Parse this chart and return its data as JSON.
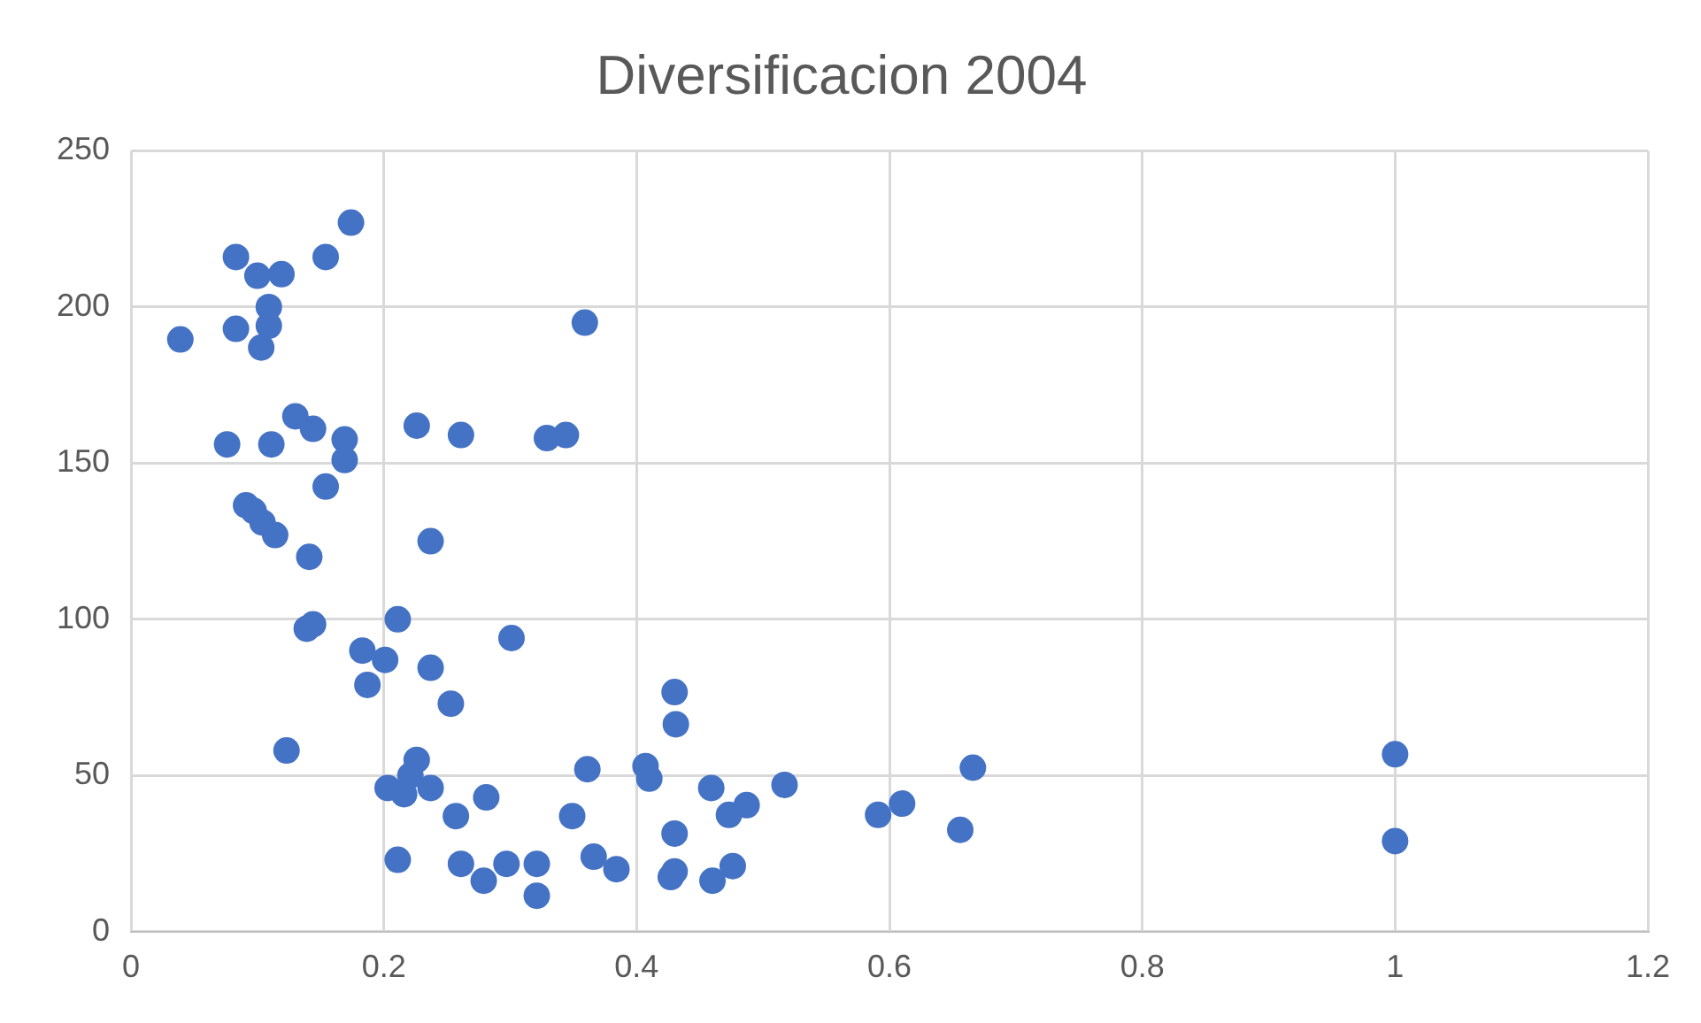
{
  "chart_data": {
    "type": "scatter",
    "title": "Diversificacion 2004",
    "x": [
      0.039,
      0.083,
      0.1,
      0.119,
      0.174,
      0.154,
      0.109,
      0.083,
      0.109,
      0.103,
      0.359,
      0.076,
      0.111,
      0.13,
      0.144,
      0.169,
      0.169,
      0.226,
      0.261,
      0.329,
      0.344,
      0.091,
      0.097,
      0.104,
      0.114,
      0.154,
      0.141,
      0.237,
      0.139,
      0.144,
      0.211,
      0.183,
      0.201,
      0.187,
      0.237,
      0.301,
      0.253,
      0.123,
      0.43,
      0.431,
      0.226,
      0.221,
      0.203,
      0.216,
      0.237,
      0.257,
      0.281,
      0.361,
      0.407,
      0.41,
      0.349,
      0.459,
      0.473,
      0.487,
      0.517,
      0.591,
      0.61,
      0.656,
      0.666,
      1,
      1,
      0.211,
      0.261,
      0.279,
      0.297,
      0.321,
      0.321,
      0.366,
      0.384,
      0.43,
      0.427,
      0.43,
      0.476,
      0.46
    ],
    "series": [
      {
        "color": "#4472c4",
        "values": [
          189.6,
          216,
          210,
          210.5,
          227,
          216,
          200,
          193,
          194,
          187,
          195,
          156,
          156,
          165,
          161,
          157.6,
          151,
          162,
          159,
          158,
          159,
          136.5,
          134.7,
          131,
          127,
          142.5,
          120,
          125,
          97,
          98.4,
          100,
          90,
          87,
          79,
          84.5,
          94,
          73,
          58,
          76.7,
          66.4,
          55,
          50,
          46,
          44,
          46,
          37,
          43,
          52,
          53,
          49,
          37,
          46,
          37.4,
          40.5,
          47,
          37.4,
          41,
          32.6,
          52.5,
          56.8,
          29,
          23,
          21.7,
          16.3,
          21.7,
          21.7,
          11.5,
          24,
          20,
          19.3,
          17.5,
          31.4,
          21,
          16.3
        ]
      }
    ],
    "xlim": [
      0,
      1.2
    ],
    "xticks": [
      0,
      0.2,
      0.4,
      0.6,
      0.8,
      1,
      1.2
    ],
    "ylim": [
      0,
      250
    ],
    "yticks": [
      0,
      50,
      100,
      150,
      200,
      250
    ],
    "grid": true,
    "marker": "circle"
  }
}
